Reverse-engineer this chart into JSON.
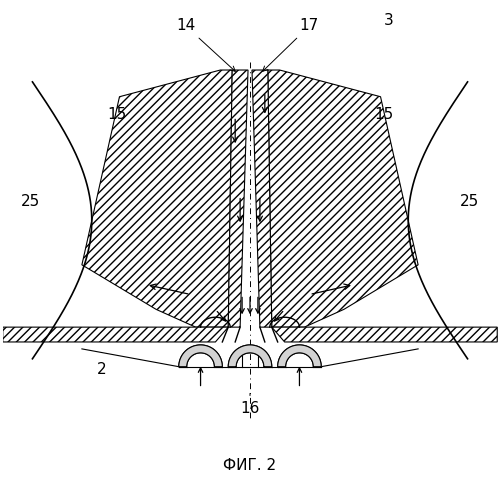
{
  "title": "ФИГ. 2",
  "label_16": "16",
  "label_2": "2",
  "label_3": "3",
  "label_14": "14",
  "label_15_left": "15",
  "label_15_right": "15",
  "label_17": "17",
  "label_25_left": "25",
  "label_25_right": "25",
  "bg_color": "#ffffff",
  "line_color": "#000000",
  "fig_width": 5.01,
  "fig_height": 5.0
}
